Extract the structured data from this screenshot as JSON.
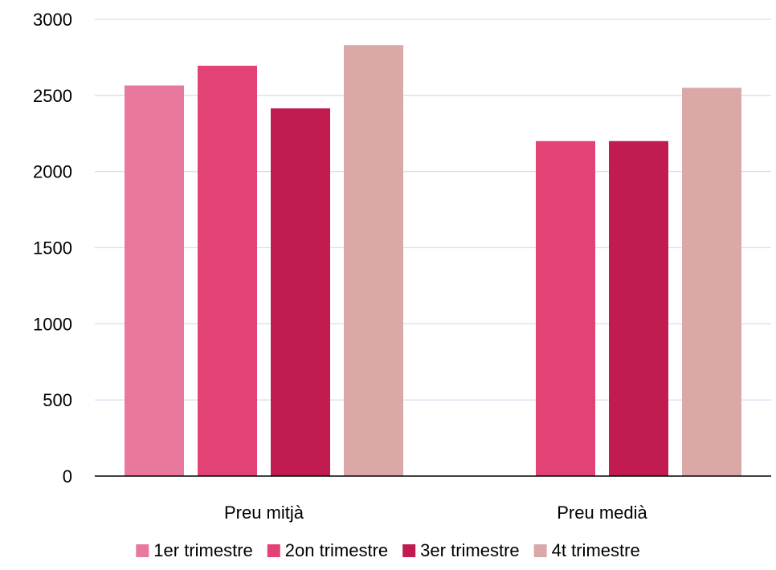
{
  "chart_data": {
    "type": "bar",
    "title": "",
    "xlabel": "",
    "ylabel": "",
    "categories": [
      "Preu mitjà",
      "Preu medià"
    ],
    "ylim": [
      0,
      3000
    ],
    "yticks": [
      0,
      500,
      1000,
      1500,
      2000,
      2500,
      3000
    ],
    "grid": true,
    "legend_position": "bottom",
    "series": [
      {
        "name": "1er trimestre",
        "color": "#E8799C",
        "values": [
          2565,
          null
        ]
      },
      {
        "name": "2on trimestre",
        "color": "#E34274",
        "values": [
          2695,
          2200
        ]
      },
      {
        "name": "3er trimestre",
        "color": "#C21B4F",
        "values": [
          2415,
          2200
        ]
      },
      {
        "name": "4t trimestre",
        "color": "#DBA8A8",
        "values": [
          2830,
          2550
        ]
      }
    ]
  }
}
